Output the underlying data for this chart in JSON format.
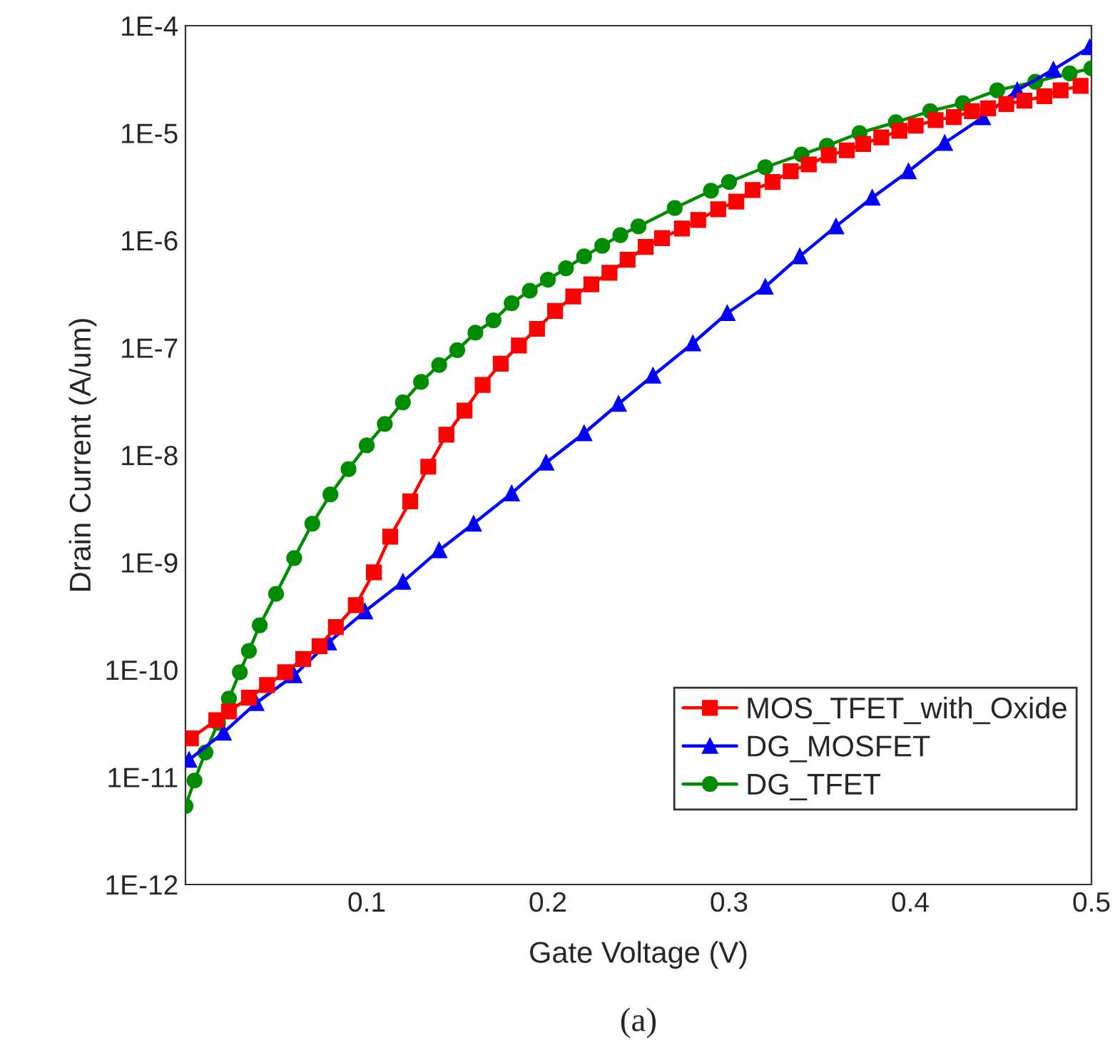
{
  "chart_data": {
    "type": "line",
    "xlabel": "Gate Voltage (V)",
    "ylabel": "Drain Current (A/um)",
    "annotations": [
      "(a)"
    ],
    "log": "y",
    "xlim": [
      0,
      0.5
    ],
    "ylim": [
      1e-12,
      0.0001
    ],
    "xticks": [
      0.1,
      0.2,
      0.3,
      0.4,
      0.5
    ],
    "yticks": [
      {
        "value": 1e-12,
        "label": "1E-12"
      },
      {
        "value": 1e-11,
        "label": "1E-11"
      },
      {
        "value": 1e-10,
        "label": "1E-10"
      },
      {
        "value": 1e-09,
        "label": "1E-9"
      },
      {
        "value": 1e-08,
        "label": "1E-8"
      },
      {
        "value": 1e-07,
        "label": "1E-7"
      },
      {
        "value": 1e-06,
        "label": "1E-6"
      },
      {
        "value": 1e-05,
        "label": "1E-5"
      },
      {
        "value": 0.0001,
        "label": "1E-4"
      }
    ],
    "grid": false,
    "legend": "bottom right",
    "series": [
      {
        "name": "MOS_TFET_with_Oxide",
        "color": "#ff0000",
        "marker": "square",
        "x": [
          0.003,
          0.017,
          0.024,
          0.035,
          0.045,
          0.055,
          0.065,
          0.074,
          0.083,
          0.094,
          0.104,
          0.113,
          0.124,
          0.134,
          0.144,
          0.154,
          0.164,
          0.174,
          0.184,
          0.194,
          0.204,
          0.214,
          0.224,
          0.234,
          0.244,
          0.254,
          0.263,
          0.274,
          0.283,
          0.294,
          0.304,
          0.313,
          0.324,
          0.334,
          0.344,
          0.355,
          0.365,
          0.374,
          0.384,
          0.394,
          0.403,
          0.414,
          0.424,
          0.434,
          0.443,
          0.453,
          0.463,
          0.474,
          0.483,
          0.494
        ],
        "values": [
          2.3e-11,
          3.4e-11,
          4.1e-11,
          5.5e-11,
          7.2e-11,
          9.5e-11,
          1.26e-10,
          1.66e-10,
          2.5e-10,
          4e-10,
          8.1e-10,
          1.74e-09,
          3.7e-09,
          7.8e-09,
          1.55e-08,
          2.6e-08,
          4.5e-08,
          7.1e-08,
          1.05e-07,
          1.5e-07,
          2.2e-07,
          3e-07,
          3.9e-07,
          5e-07,
          6.6e-07,
          8.7e-07,
          1.05e-06,
          1.29e-06,
          1.55e-06,
          1.95e-06,
          2.3e-06,
          2.95e-06,
          3.5e-06,
          4.4e-06,
          5.1e-06,
          6.2e-06,
          6.9e-06,
          7.9e-06,
          9.1e-06,
          1.05e-05,
          1.17e-05,
          1.32e-05,
          1.41e-05,
          1.6e-05,
          1.7e-05,
          1.86e-05,
          2e-05,
          2.2e-05,
          2.5e-05,
          2.75e-05
        ]
      },
      {
        "name": "DG_MOSFET",
        "color": "#0000ff",
        "marker": "triangle",
        "x": [
          0.002,
          0.021,
          0.039,
          0.06,
          0.079,
          0.099,
          0.12,
          0.14,
          0.159,
          0.18,
          0.199,
          0.22,
          0.239,
          0.258,
          0.28,
          0.299,
          0.32,
          0.339,
          0.359,
          0.379,
          0.399,
          0.419,
          0.44,
          0.459,
          0.479,
          0.499
        ],
        "values": [
          1.45e-11,
          2.6e-11,
          4.9e-11,
          8.9e-11,
          1.8e-10,
          3.5e-10,
          6.6e-10,
          1.3e-09,
          2.3e-09,
          4.4e-09,
          8.5e-09,
          1.6e-08,
          3e-08,
          5.5e-08,
          1.1e-07,
          2.1e-07,
          3.7e-07,
          7.1e-07,
          1.35e-06,
          2.5e-06,
          4.4e-06,
          8.1e-06,
          1.4e-05,
          2.5e-05,
          3.9e-05,
          6.3e-05
        ]
      },
      {
        "name": "DG_TFET",
        "color": "#008c00",
        "marker": "circle",
        "x": [
          0.0,
          0.005,
          0.011,
          0.018,
          0.024,
          0.03,
          0.035,
          0.041,
          0.05,
          0.06,
          0.07,
          0.08,
          0.09,
          0.1,
          0.11,
          0.12,
          0.13,
          0.14,
          0.15,
          0.16,
          0.17,
          0.18,
          0.19,
          0.2,
          0.21,
          0.22,
          0.23,
          0.24,
          0.25,
          0.27,
          0.29,
          0.3,
          0.32,
          0.34,
          0.354,
          0.372,
          0.392,
          0.411,
          0.429,
          0.448,
          0.469,
          0.488,
          0.5
        ],
        "values": [
          5.4e-12,
          9.3e-12,
          1.7e-11,
          3.2e-11,
          5.4e-11,
          9.5e-11,
          1.5e-10,
          2.6e-10,
          5.1e-10,
          1.1e-09,
          2.3e-09,
          4.3e-09,
          7.4e-09,
          1.23e-08,
          1.95e-08,
          3.1e-08,
          4.8e-08,
          6.9e-08,
          9.5e-08,
          1.38e-07,
          1.8e-07,
          2.6e-07,
          3.4e-07,
          4.3e-07,
          5.5e-07,
          7.1e-07,
          8.9e-07,
          1.12e-06,
          1.35e-06,
          2e-06,
          2.9e-06,
          3.5e-06,
          4.8e-06,
          6.3e-06,
          7.6e-06,
          1e-05,
          1.26e-05,
          1.6e-05,
          1.9e-05,
          2.5e-05,
          3e-05,
          3.6e-05,
          4e-05
        ]
      }
    ]
  }
}
